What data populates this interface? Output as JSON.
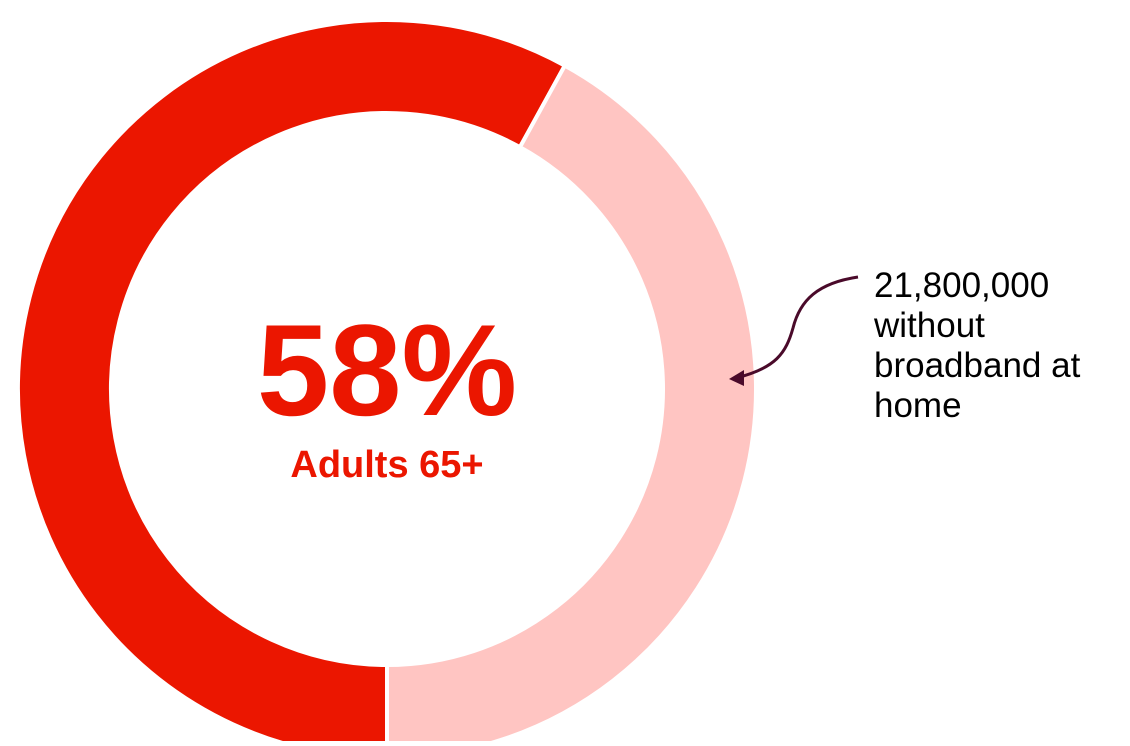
{
  "chart_data": {
    "type": "pie",
    "slices": [
      {
        "value": 58,
        "color": "#EB1600"
      },
      {
        "value": 42,
        "color": "#FFC5C2"
      }
    ],
    "center_value": "58%",
    "center_label": "Adults 65+"
  },
  "annotation": {
    "lines": [
      "21,800,000",
      "without",
      "broadband at",
      "home"
    ],
    "arrow_color": "#4A0A2A"
  },
  "colors": {
    "primary": "#EB1600",
    "secondary": "#FFC5C2",
    "text": "#000000"
  }
}
